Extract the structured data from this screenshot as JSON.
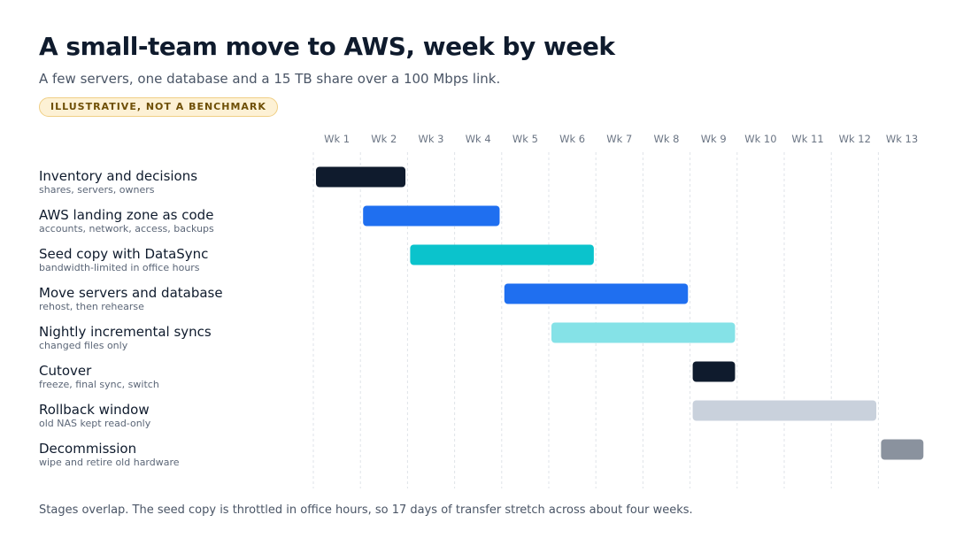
{
  "chart_data": {
    "type": "bar",
    "title": "A small-team move to AWS, week by week",
    "subtitle": "A few servers, one database and a 15 TB share over a 100 Mbps link.",
    "badge": "ILLUSTRATIVE, NOT A BENCHMARK",
    "footnote": "Stages overlap. The seed copy is throttled in office hours, so 17 days of transfer stretch across about four weeks.",
    "x_ticks": [
      "Wk 1",
      "Wk 2",
      "Wk 3",
      "Wk 4",
      "Wk 5",
      "Wk 6",
      "Wk 7",
      "Wk 8",
      "Wk 9",
      "Wk 10",
      "Wk 11",
      "Wk 12",
      "Wk 13"
    ],
    "grid": true,
    "tasks": [
      {
        "name": "Inventory and decisions",
        "detail": "shares, servers, owners",
        "start_week": 1,
        "end_week": 2.9,
        "color": "#0f1b2d"
      },
      {
        "name": "AWS landing zone as code",
        "detail": "accounts, network, access, backups",
        "start_week": 2,
        "end_week": 4.9,
        "color": "#1f6ff0"
      },
      {
        "name": "Seed copy with DataSync",
        "detail": "bandwidth-limited in office hours",
        "start_week": 3,
        "end_week": 6.9,
        "color": "#0bc3cc"
      },
      {
        "name": "Move servers and database",
        "detail": "rehost, then rehearse",
        "start_week": 5,
        "end_week": 8.9,
        "color": "#1f6ff0"
      },
      {
        "name": "Nightly incremental syncs",
        "detail": "changed files only",
        "start_week": 6,
        "end_week": 9.9,
        "color": "#85e2e7"
      },
      {
        "name": "Cutover",
        "detail": "freeze, final sync, switch",
        "start_week": 9,
        "end_week": 9.9,
        "color": "#0f1b2d"
      },
      {
        "name": "Rollback window",
        "detail": "old NAS kept read-only",
        "start_week": 9,
        "end_week": 12.9,
        "color": "#c9d1dc"
      },
      {
        "name": "Decommission",
        "detail": "wipe and retire old hardware",
        "start_week": 13,
        "end_week": 13.9,
        "color": "#8a929e"
      }
    ]
  }
}
